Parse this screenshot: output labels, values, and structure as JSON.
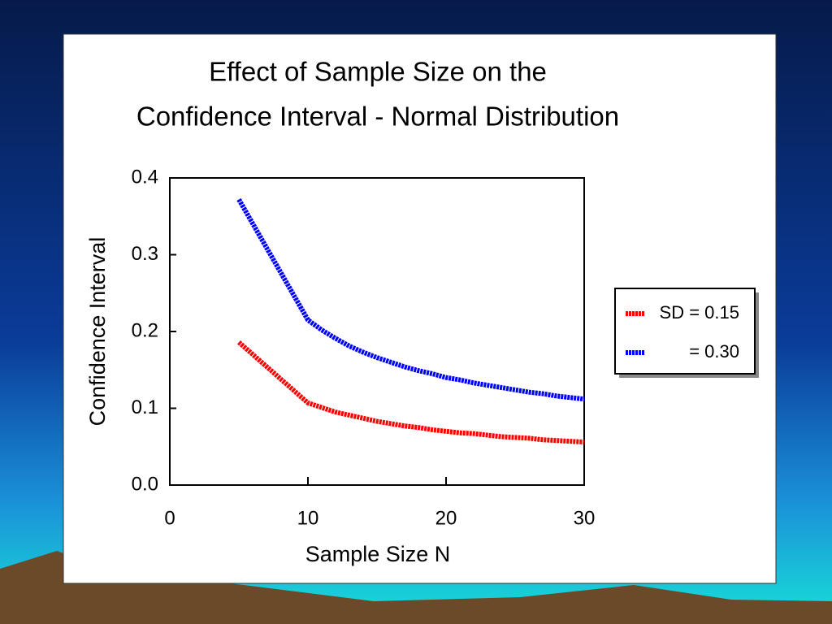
{
  "chart_data": {
    "type": "line",
    "title": [
      "Effect of Sample Size on the",
      "Confidence Interval - Normal Distribution"
    ],
    "x_label": "Sample Size N",
    "y_label": "Confidence Interval",
    "x": [
      5,
      10,
      11,
      12,
      13,
      14,
      15,
      16,
      17,
      18,
      19,
      20,
      21,
      22,
      23,
      24,
      25,
      26,
      27,
      28,
      29,
      30
    ],
    "series": [
      {
        "name": "SD = 0.15",
        "color": "#ff0000",
        "values": [
          0.186,
          0.107,
          0.101,
          0.095,
          0.091,
          0.087,
          0.083,
          0.08,
          0.077,
          0.075,
          0.072,
          0.07,
          0.068,
          0.067,
          0.065,
          0.063,
          0.062,
          0.061,
          0.059,
          0.058,
          0.057,
          0.056
        ]
      },
      {
        "name": "= 0.30",
        "color": "#0000ff",
        "values": [
          0.372,
          0.215,
          0.202,
          0.191,
          0.181,
          0.173,
          0.166,
          0.16,
          0.154,
          0.149,
          0.145,
          0.14,
          0.137,
          0.133,
          0.13,
          0.127,
          0.124,
          0.121,
          0.119,
          0.116,
          0.114,
          0.112
        ]
      }
    ],
    "xlim": [
      0,
      30
    ],
    "xticks": [
      0,
      10,
      20,
      30
    ],
    "ylim": [
      0,
      0.4
    ],
    "yticks": [
      {
        "value": 0,
        "label": "0.0"
      },
      0.1,
      0.2,
      0.3,
      0.4
    ],
    "legend": "right"
  }
}
